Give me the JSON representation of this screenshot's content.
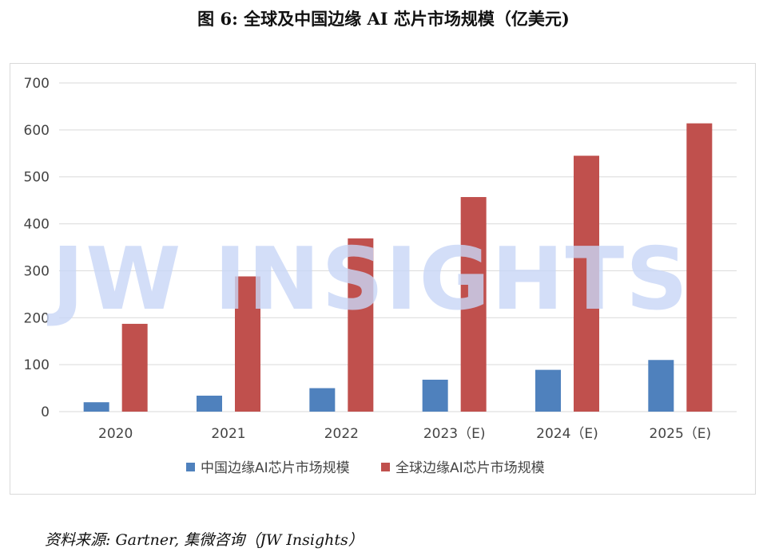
{
  "figure": {
    "title": "图 6:  全球及中国边缘 AI 芯片市场规模（亿美元)",
    "source": "资料来源:  Gartner,  集微咨询（JW Insights）",
    "watermark": "JW INSIGHTS"
  },
  "chart_data": {
    "type": "bar",
    "categories": [
      "2020",
      "2021",
      "2022",
      "2023（E)",
      "2024（E)",
      "2025（E)"
    ],
    "series": [
      {
        "name": "中国边缘AI芯片市场规模",
        "color": "#4f81bd",
        "values": [
          20,
          34,
          50,
          68,
          89,
          110
        ]
      },
      {
        "name": "全球边缘AI芯片市场规模",
        "color": "#c0504d",
        "values": [
          187,
          288,
          369,
          457,
          545,
          614
        ]
      }
    ],
    "ylim": [
      0,
      700
    ],
    "yticks": [
      0,
      100,
      200,
      300,
      400,
      500,
      600,
      700
    ],
    "grid": true,
    "legend_position": "bottom",
    "title": "",
    "xlabel": "",
    "ylabel": ""
  }
}
